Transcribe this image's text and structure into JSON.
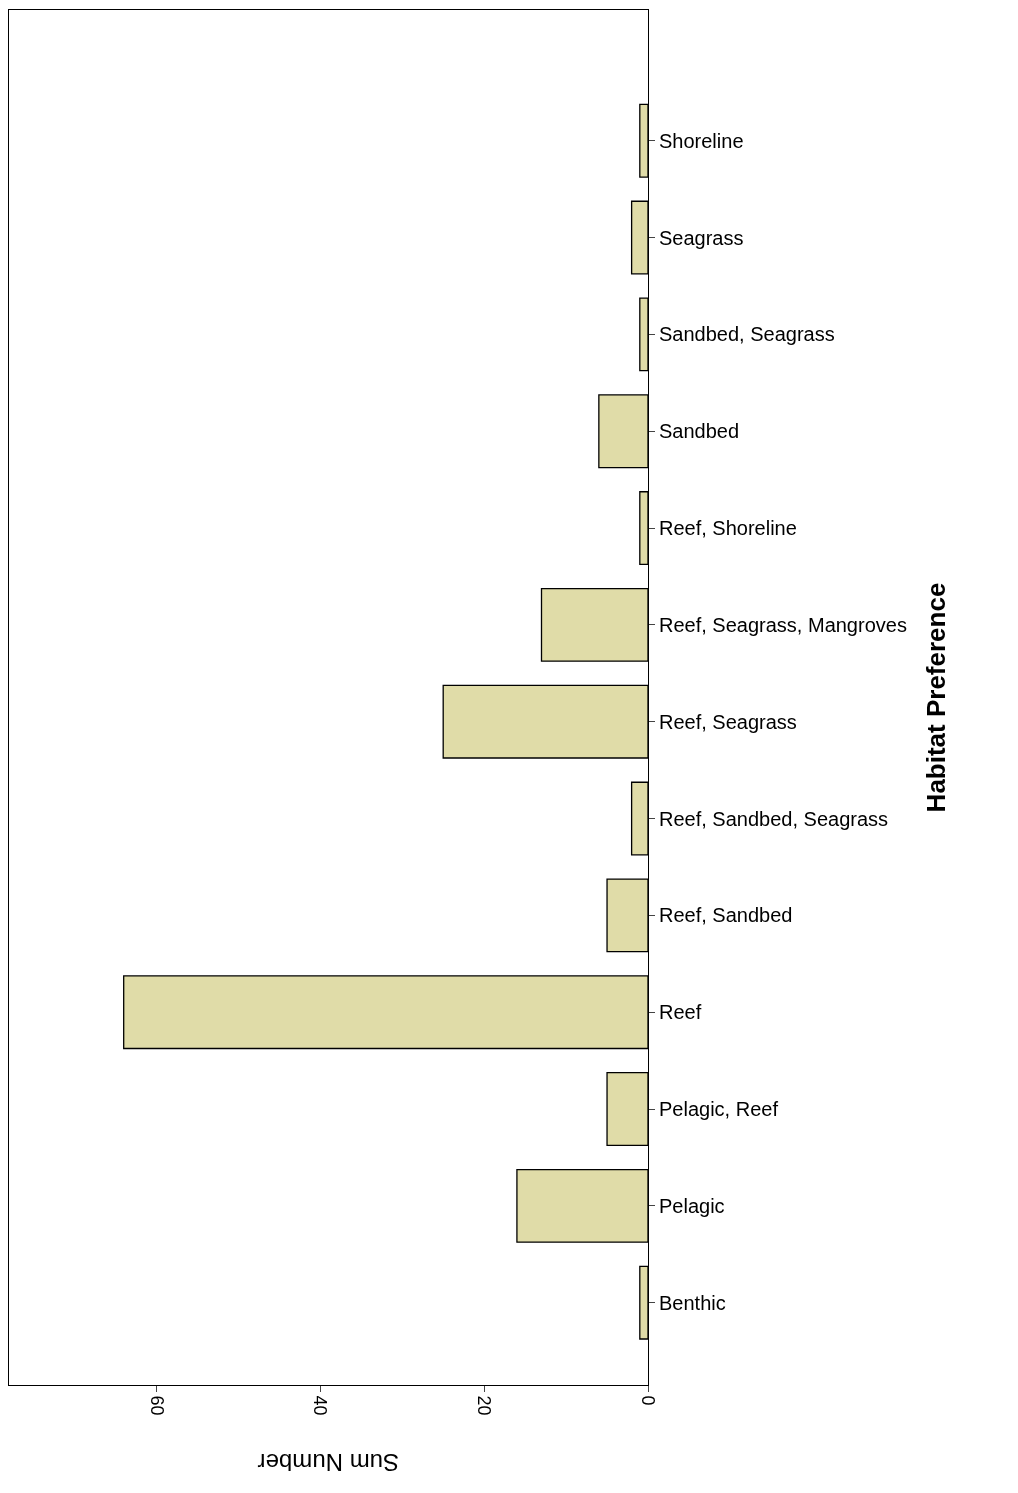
{
  "chart_data": {
    "type": "bar",
    "orientation": "horizontal",
    "xlabel": "Sum Number",
    "ylabel": "Habitat Preference",
    "categories": [
      "Shoreline",
      "Seagrass",
      "Sandbed, Seagrass",
      "Sandbed",
      "Reef, Shoreline",
      "Reef, Seagrass, Mangroves",
      "Reef, Seagrass",
      "Reef, Sandbed, Seagrass",
      "Reef, Sandbed",
      "Reef",
      "Pelagic, Reef",
      "Pelagic",
      "Benthic"
    ],
    "values": [
      1,
      2,
      1,
      6,
      1,
      13,
      25,
      2,
      5,
      64,
      5,
      16,
      1
    ],
    "color": "#e0dca8",
    "xlim": [
      78,
      0
    ],
    "xticks": [
      0,
      20,
      40,
      60
    ]
  }
}
